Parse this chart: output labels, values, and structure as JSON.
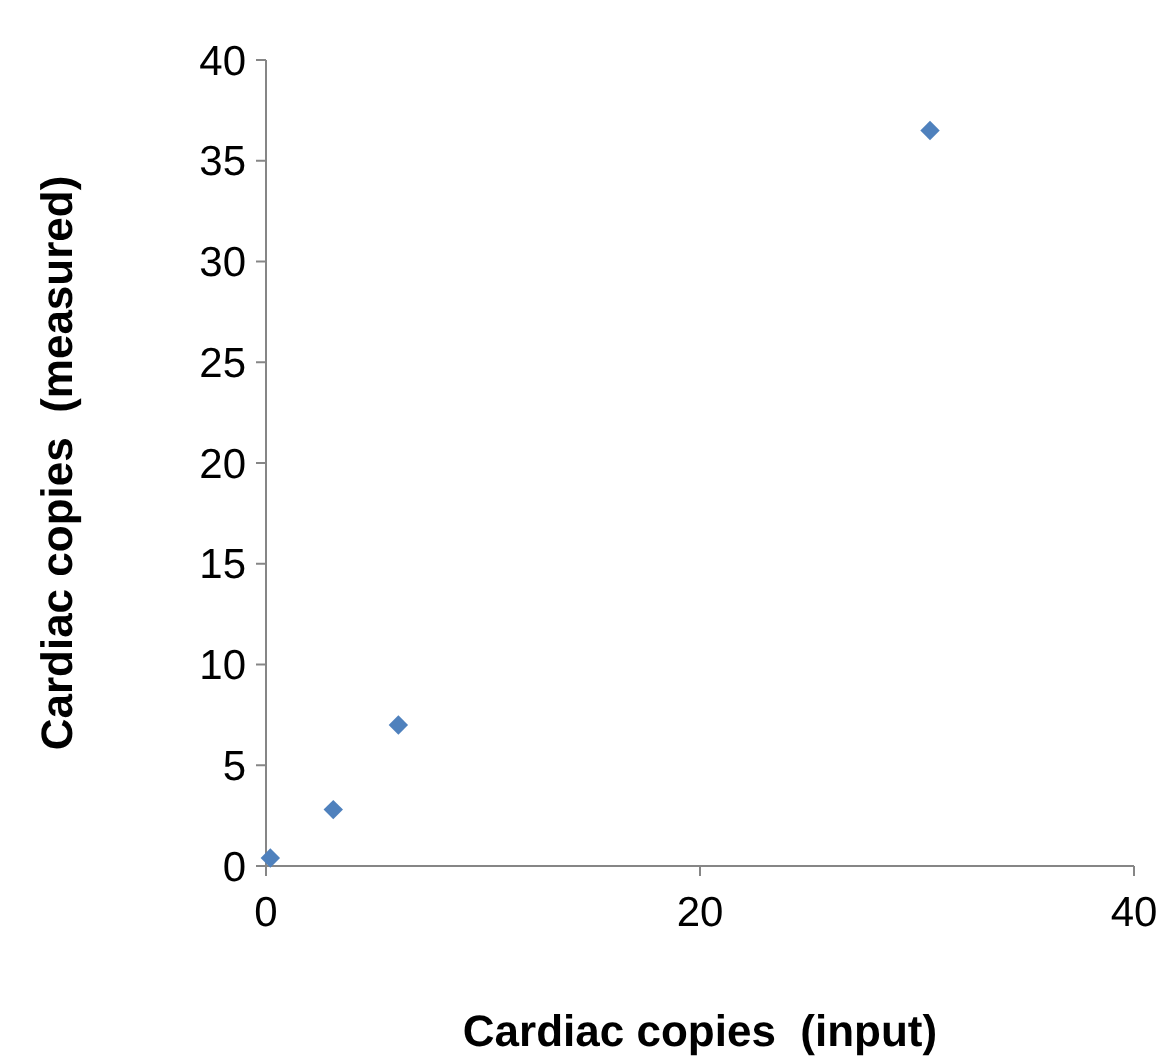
{
  "chart_data": {
    "type": "scatter",
    "xlabel": "Cardiac copies  (input)",
    "ylabel": "Cardiac copies  (measured)",
    "x": [
      0.2,
      3.1,
      6.1,
      30.6
    ],
    "series": [
      {
        "color": "#4f81bd",
        "values": [
          0.4,
          2.8,
          7.0,
          36.5
        ]
      }
    ],
    "xlim": [
      0,
      40
    ],
    "xticks": [
      0,
      20,
      40
    ],
    "ylim": [
      0,
      40
    ],
    "yticks": [
      0,
      5,
      10,
      15,
      20,
      25,
      30,
      35,
      40
    ],
    "marker": "diamond"
  }
}
